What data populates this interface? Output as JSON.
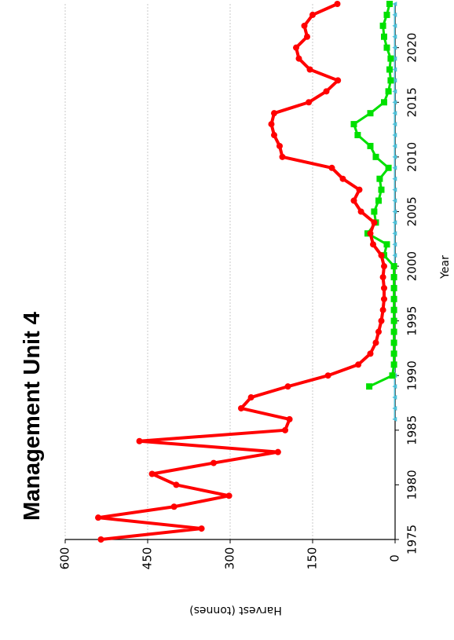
{
  "chart_data": {
    "type": "line",
    "title": "Management Unit 4",
    "xlabel": "Year",
    "ylabel": "Harvest (tonnes)",
    "xlim": [
      1975,
      2024
    ],
    "ylim": [
      0,
      600
    ],
    "x_ticks": [
      1975,
      1980,
      1985,
      1990,
      1995,
      2000,
      2005,
      2010,
      2015,
      2020
    ],
    "y_ticks": [
      0,
      150,
      300,
      450,
      600
    ],
    "grid": "horizontal",
    "orientation": "rotated-90-clockwise",
    "series": [
      {
        "color": "#ff0000",
        "marker": "circle",
        "x": [
          1975,
          1976,
          1977,
          1978,
          1979,
          1980,
          1981,
          1982,
          1983,
          1984,
          1985,
          1986,
          1987,
          1988,
          1989,
          1990,
          1991,
          1992,
          1993,
          1994,
          1995,
          1996,
          1997,
          1998,
          1999,
          2000,
          2001,
          2002,
          2003,
          2004,
          2005,
          2006,
          2007,
          2008,
          2009,
          2010,
          2011,
          2012,
          2013,
          2014,
          2015,
          2016,
          2017,
          2018,
          2019,
          2020,
          2021,
          2022,
          2023,
          2024
        ],
        "values": [
          535,
          352,
          540,
          402,
          302,
          398,
          442,
          330,
          213,
          465,
          200,
          192,
          280,
          262,
          195,
          122,
          67,
          45,
          35,
          30,
          25,
          22,
          20,
          20,
          22,
          20,
          25,
          40,
          45,
          38,
          62,
          75,
          65,
          95,
          115,
          205,
          210,
          220,
          225,
          220,
          157,
          125,
          104,
          155,
          175,
          180,
          160,
          165,
          150,
          105
        ]
      },
      {
        "color": "#00e000",
        "marker": "square",
        "x": [
          1989,
          1990,
          1991,
          1992,
          1993,
          1994,
          1995,
          1996,
          1997,
          1998,
          1999,
          2000,
          2001,
          2002,
          2003,
          2004,
          2005,
          2006,
          2007,
          2008,
          2009,
          2010,
          2011,
          2012,
          2013,
          2014,
          2015,
          2016,
          2017,
          2018,
          2019,
          2020,
          2021,
          2022,
          2023,
          2024
        ],
        "values": [
          47,
          5,
          2,
          2,
          2,
          2,
          2,
          2,
          2,
          2,
          2,
          2,
          20,
          15,
          50,
          35,
          38,
          30,
          25,
          28,
          12,
          35,
          45,
          68,
          75,
          45,
          20,
          12,
          8,
          10,
          8,
          15,
          20,
          22,
          15,
          10
        ]
      },
      {
        "color": "#4ec0d8",
        "marker": "triangle",
        "x": [
          1986,
          1987,
          1988,
          1989,
          1990,
          1991,
          1992,
          1993,
          1994,
          1995,
          1996,
          1997,
          1998,
          1999,
          2000,
          2001,
          2002,
          2003,
          2004,
          2005,
          2006,
          2007,
          2008,
          2009,
          2010,
          2011,
          2012,
          2013,
          2014,
          2015,
          2016,
          2017,
          2018,
          2019,
          2020,
          2021,
          2022,
          2023,
          2024
        ],
        "values": [
          1,
          1,
          1,
          1,
          1,
          1,
          1,
          1,
          1,
          1,
          1,
          1,
          1,
          1,
          1,
          1,
          1,
          1,
          1,
          1,
          1,
          1,
          1,
          1,
          1,
          1,
          1,
          1,
          1,
          1,
          1,
          1,
          1,
          1,
          1,
          1,
          1,
          1,
          1
        ]
      }
    ]
  }
}
